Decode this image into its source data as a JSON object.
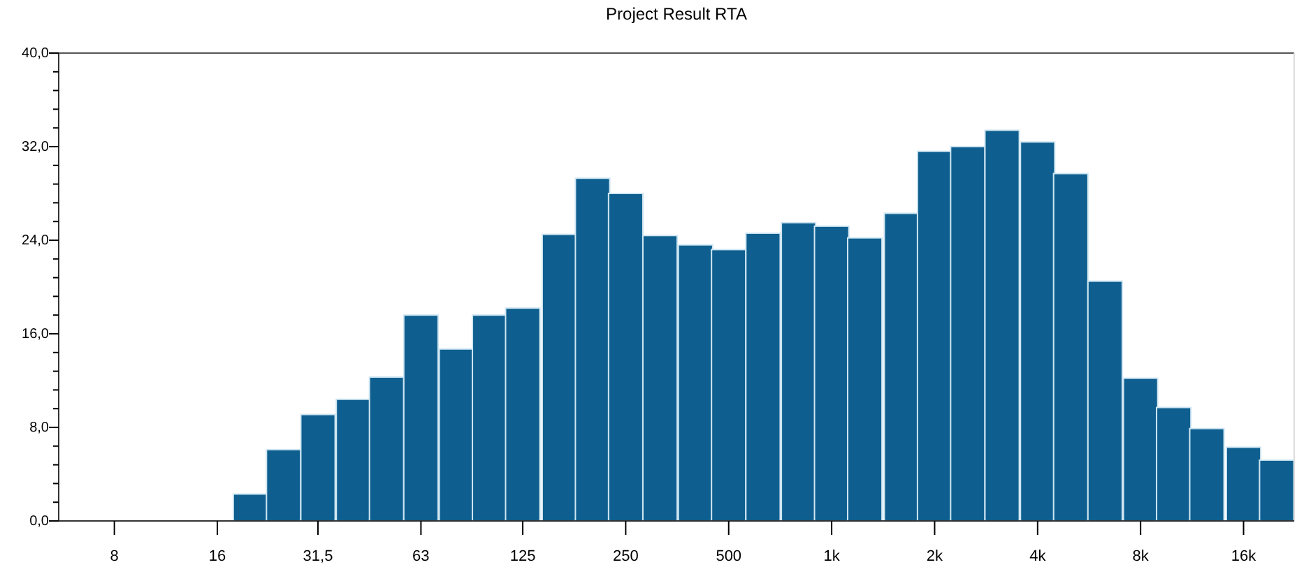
{
  "chart_data": {
    "type": "bar",
    "title": "Project Result RTA",
    "x": [
      20,
      25,
      31.5,
      40,
      50,
      63,
      80,
      100,
      125,
      160,
      200,
      250,
      315,
      400,
      500,
      630,
      800,
      1000,
      1250,
      1600,
      2000,
      2500,
      3150,
      4000,
      5000,
      6300,
      8000,
      10000,
      12500,
      16000,
      20000
    ],
    "values": [
      2.3,
      6.1,
      9.1,
      10.4,
      12.3,
      17.6,
      14.7,
      17.6,
      18.2,
      24.5,
      29.3,
      28.0,
      24.4,
      23.6,
      23.2,
      24.6,
      25.5,
      25.2,
      24.2,
      26.3,
      31.6,
      32.0,
      33.4,
      32.4,
      29.7,
      20.5,
      12.2,
      9.7,
      7.9,
      6.3,
      5.2
    ],
    "color": "#0e5f8f",
    "log": "x",
    "xlim": [
      5.5,
      22500
    ],
    "xticks": [
      8,
      16,
      {
        "value": 31.5,
        "label": "31,5"
      },
      63,
      125,
      250,
      500,
      {
        "value": 1000,
        "label": "1k"
      },
      {
        "value": 2000,
        "label": "2k"
      },
      {
        "value": 4000,
        "label": "4k"
      },
      {
        "value": 8000,
        "label": "8k"
      },
      {
        "value": 16000,
        "label": "16k"
      }
    ],
    "ylim": [
      0,
      40
    ],
    "yticks": [
      {
        "value": 0,
        "label": "0,0"
      },
      {
        "value": 1.6,
        "label": null
      },
      {
        "value": 3.2,
        "label": null
      },
      {
        "value": 4.8,
        "label": null
      },
      {
        "value": 6.4,
        "label": null
      },
      {
        "value": 8,
        "label": "8,0"
      },
      {
        "value": 9.6,
        "label": null
      },
      {
        "value": 11.2,
        "label": null
      },
      {
        "value": 12.8,
        "label": null
      },
      {
        "value": 14.4,
        "label": null
      },
      {
        "value": 16,
        "label": "16,0"
      },
      {
        "value": 17.6,
        "label": null
      },
      {
        "value": 19.2,
        "label": null
      },
      {
        "value": 20.8,
        "label": null
      },
      {
        "value": 22.4,
        "label": null
      },
      {
        "value": 24,
        "label": "24,0"
      },
      {
        "value": 25.6,
        "label": null
      },
      {
        "value": 27.2,
        "label": null
      },
      {
        "value": 28.8,
        "label": null
      },
      {
        "value": 30.4,
        "label": null
      },
      {
        "value": 32,
        "label": "32,0"
      },
      {
        "value": 33.6,
        "label": null
      },
      {
        "value": 35.2,
        "label": null
      },
      {
        "value": 36.8,
        "label": null
      },
      {
        "value": 38.4,
        "label": null
      },
      {
        "value": 40,
        "label": "40,0"
      }
    ],
    "grid": false
  }
}
